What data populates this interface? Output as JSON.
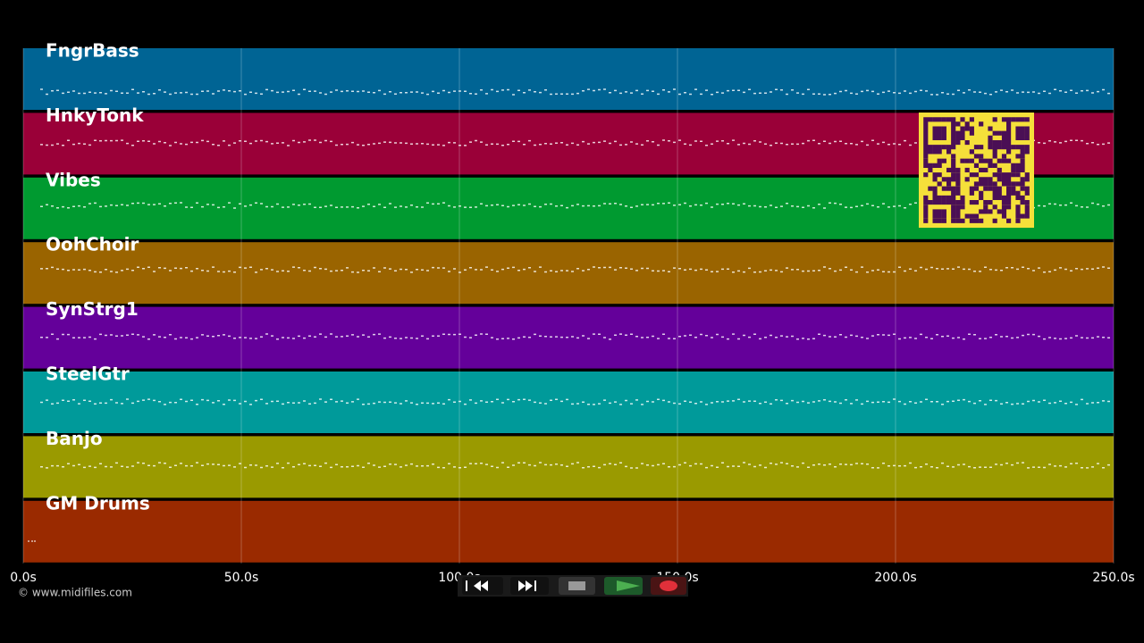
{
  "tracks": [
    {
      "name": "FngrBass",
      "color": "#006494"
    },
    {
      "name": "HnkyTonk",
      "color": "#9a0038"
    },
    {
      "name": "Vibes",
      "color": "#009a30"
    },
    {
      "name": "OohChoir",
      "color": "#9a6400"
    },
    {
      "name": "SynStrg1",
      "color": "#64009a"
    },
    {
      "name": "SteelGtr",
      "color": "#009a9a"
    },
    {
      "name": "Banjo",
      "color": "#9a9a00"
    },
    {
      "name": "GM Drums",
      "color": "#9a2a00"
    }
  ],
  "time_axis": {
    "labels": [
      "0.0s",
      "50.0s",
      "100.0s",
      "150.0s",
      "200.0s",
      "250.0s"
    ]
  },
  "footer": {
    "copyright": "© www.midifiles.com"
  }
}
